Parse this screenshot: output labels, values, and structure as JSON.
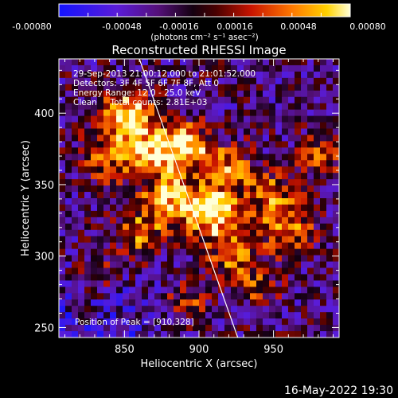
{
  "colorbar": {
    "ticks": [
      "-0.00080",
      "-0.00048",
      "-0.00016",
      "0.00016",
      "0.00048",
      "0.00080"
    ],
    "unit": "(photons cm⁻² s⁻¹ asec⁻²)",
    "range": [
      -0.0008,
      0.0008
    ]
  },
  "chart_data": {
    "type": "heatmap",
    "title": "Reconstructed RHESSI Image",
    "xlabel": "Heliocentric X (arcsec)",
    "ylabel": "Heliocentric Y (arcsec)",
    "xlim": [
      806,
      994
    ],
    "ylim": [
      243,
      438
    ],
    "x_ticks": [
      850,
      900,
      950
    ],
    "y_ticks": [
      250,
      300,
      350,
      400
    ],
    "annotations": [
      "29-Sep-2013 21:00:12.000 to 21:01:52.000",
      "Detectors: 3F 4F 5F 6F 7F 8F, Att 0",
      "Energy Range: 12.0 - 25.0 keV",
      "Clean     Total counts: 2.81E+03"
    ],
    "peak_label": "Position of Peak = [910,328]",
    "peak": [
      910,
      328
    ],
    "limb_line": [
      [
        860,
        438
      ],
      [
        926,
        243
      ]
    ],
    "emission_sources": [
      {
        "x": 852,
        "y": 398,
        "amplitude": 1.3,
        "sigma": 11
      },
      {
        "x": 870,
        "y": 375,
        "amplitude": 0.9,
        "sigma": 13
      },
      {
        "x": 840,
        "y": 370,
        "amplitude": 0.6,
        "sigma": 14
      },
      {
        "x": 893,
        "y": 378,
        "amplitude": 0.9,
        "sigma": 11
      },
      {
        "x": 918,
        "y": 362,
        "amplitude": 0.7,
        "sigma": 12
      },
      {
        "x": 880,
        "y": 340,
        "amplitude": 1.0,
        "sigma": 13
      },
      {
        "x": 908,
        "y": 331,
        "amplitude": 1.4,
        "sigma": 12
      },
      {
        "x": 948,
        "y": 343,
        "amplitude": 0.7,
        "sigma": 13
      },
      {
        "x": 860,
        "y": 316,
        "amplitude": 0.7,
        "sigma": 11
      },
      {
        "x": 922,
        "y": 300,
        "amplitude": 0.7,
        "sigma": 12
      },
      {
        "x": 960,
        "y": 318,
        "amplitude": 0.8,
        "sigma": 12
      },
      {
        "x": 982,
        "y": 370,
        "amplitude": 0.6,
        "sigma": 10
      },
      {
        "x": 940,
        "y": 279,
        "amplitude": 0.5,
        "sigma": 10
      },
      {
        "x": 892,
        "y": 268,
        "amplitude": 0.5,
        "sigma": 10
      },
      {
        "x": 832,
        "y": 287,
        "amplitude": 0.4,
        "sigma": 9
      },
      {
        "x": 826,
        "y": 258,
        "amplitude": 0.3,
        "sigma": 8
      }
    ]
  },
  "footer": {
    "timestamp": "16-May-2022 19:30"
  }
}
